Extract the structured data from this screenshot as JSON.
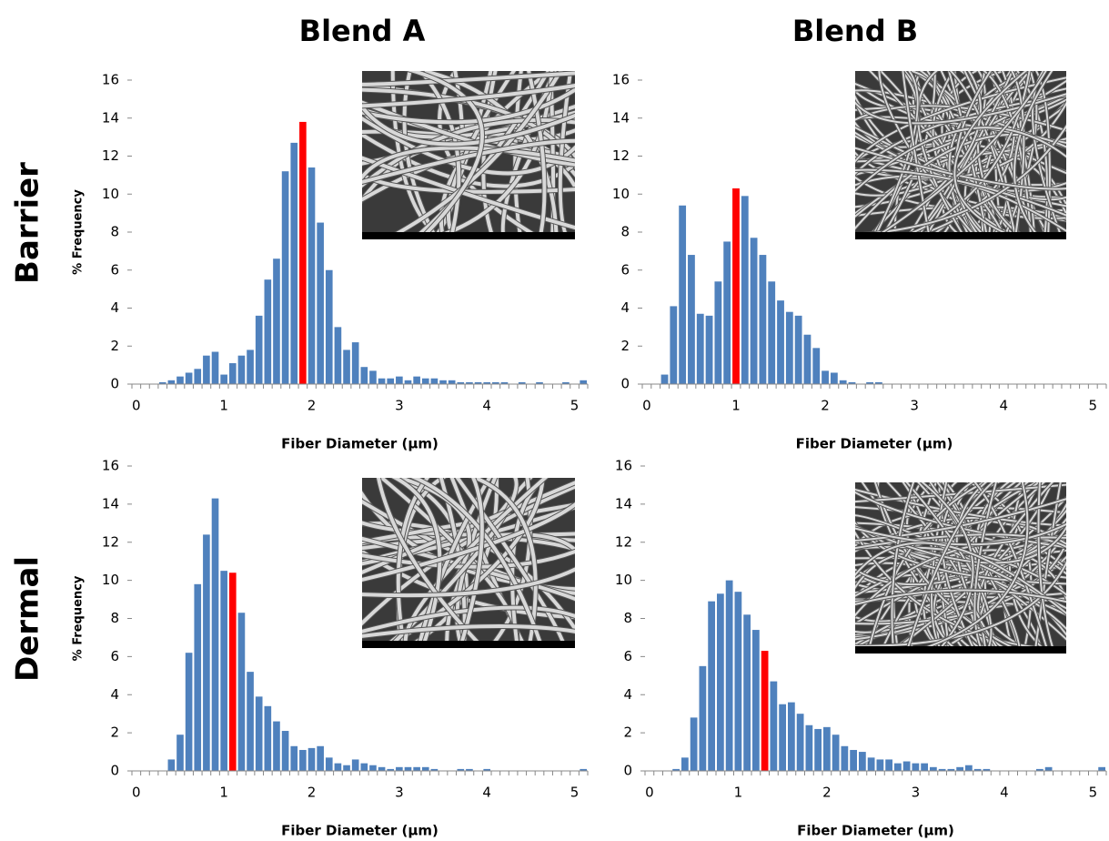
{
  "figure": {
    "columns": [
      "Blend A",
      "Blend B"
    ],
    "rows": [
      "Barrier",
      "Dermal"
    ]
  },
  "chart_data": [
    {
      "type": "histogram",
      "xlabel": "Fiber Diameter (µm)",
      "ylabel": "% Frequency",
      "color": "#4f81bd",
      "highlight_index": 19,
      "highlight_color": "#ff0000",
      "bins": [
        -0.05,
        0.05,
        0.15,
        0.25,
        0.35,
        0.45,
        0.55,
        0.65,
        0.75,
        0.85,
        0.95,
        1.05,
        1.15,
        1.25,
        1.35,
        1.45,
        1.55,
        1.65,
        1.75,
        1.85,
        1.95,
        2.05,
        2.15,
        2.25,
        2.35,
        2.45,
        2.55,
        2.65,
        2.75,
        2.85,
        2.95,
        3.05,
        3.15,
        3.25,
        3.35,
        3.45,
        3.55,
        3.65,
        3.75,
        3.85,
        3.95,
        4.05,
        4.15,
        4.25,
        4.35,
        4.45,
        4.55,
        4.65,
        4.75,
        4.85,
        4.95,
        5.05,
        5.15
      ],
      "values": [
        0,
        0,
        0,
        0.1,
        0.2,
        0.4,
        0.6,
        0.8,
        1.5,
        1.7,
        0.5,
        1.1,
        1.5,
        1.8,
        3.6,
        5.5,
        6.6,
        11.2,
        12.7,
        13.8,
        11.4,
        8.5,
        6.0,
        3.0,
        1.8,
        2.2,
        0.9,
        0.7,
        0.3,
        0.3,
        0.4,
        0.2,
        0.4,
        0.3,
        0.3,
        0.2,
        0.2,
        0.1,
        0.1,
        0.1,
        0.1,
        0.1,
        0.1,
        0,
        0.1,
        0,
        0.1,
        0,
        0,
        0.1,
        0,
        0.2
      ],
      "xlim": [
        -0.05,
        5.15
      ],
      "xticks": [
        0,
        1,
        2,
        3,
        4,
        5
      ],
      "ylim": [
        0,
        16
      ],
      "yticks": [
        0,
        2,
        4,
        6,
        8,
        10,
        12,
        14,
        16
      ]
    },
    {
      "type": "histogram",
      "xlabel": "Fiber Diameter (µm)",
      "color": "#4f81bd",
      "highlight_index": 10,
      "highlight_color": "#ff0000",
      "bins": [
        -0.05,
        0.05,
        0.15,
        0.25,
        0.35,
        0.45,
        0.55,
        0.65,
        0.75,
        0.85,
        0.95,
        1.05,
        1.15,
        1.25,
        1.35,
        1.45,
        1.55,
        1.65,
        1.75,
        1.85,
        1.95,
        2.05,
        2.15,
        2.25,
        2.35,
        2.45,
        2.55,
        2.65,
        2.75,
        2.85,
        2.95,
        3.05,
        3.15,
        3.25,
        3.35,
        3.45,
        3.55,
        3.65,
        3.75,
        3.85,
        3.95,
        4.05,
        4.15,
        4.25,
        4.35,
        4.45,
        4.55,
        4.65,
        4.75,
        4.85,
        4.95,
        5.05,
        5.15
      ],
      "values": [
        0,
        0,
        0.5,
        4.1,
        9.4,
        6.8,
        3.7,
        3.6,
        5.4,
        7.5,
        10.3,
        9.9,
        7.7,
        6.8,
        5.4,
        4.4,
        3.8,
        3.6,
        2.6,
        1.9,
        0.7,
        0.6,
        0.2,
        0.1,
        0,
        0.1,
        0.1,
        0,
        0,
        0,
        0,
        0,
        0,
        0,
        0,
        0,
        0,
        0,
        0,
        0,
        0,
        0,
        0,
        0,
        0,
        0,
        0,
        0,
        0,
        0,
        0,
        0
      ],
      "xlim": [
        -0.05,
        5.15
      ],
      "xticks": [
        0,
        1,
        2,
        3,
        4,
        5
      ],
      "ylim": [
        0,
        16
      ],
      "yticks": [
        0,
        2,
        4,
        6,
        8,
        10,
        12,
        14,
        16
      ]
    },
    {
      "type": "histogram",
      "xlabel": "Fiber Diameter (µm)",
      "ylabel": "% Frequency",
      "color": "#4f81bd",
      "highlight_index": 11,
      "highlight_color": "#ff0000",
      "bins": [
        -0.05,
        0.05,
        0.15,
        0.25,
        0.35,
        0.45,
        0.55,
        0.65,
        0.75,
        0.85,
        0.95,
        1.05,
        1.15,
        1.25,
        1.35,
        1.45,
        1.55,
        1.65,
        1.75,
        1.85,
        1.95,
        2.05,
        2.15,
        2.25,
        2.35,
        2.45,
        2.55,
        2.65,
        2.75,
        2.85,
        2.95,
        3.05,
        3.15,
        3.25,
        3.35,
        3.45,
        3.55,
        3.65,
        3.75,
        3.85,
        3.95,
        4.05,
        4.15,
        4.25,
        4.35,
        4.45,
        4.55,
        4.65,
        4.75,
        4.85,
        4.95,
        5.05,
        5.15
      ],
      "values": [
        0,
        0,
        0,
        0,
        0.6,
        1.9,
        6.2,
        9.8,
        12.4,
        14.3,
        10.5,
        10.4,
        8.3,
        5.2,
        3.9,
        3.4,
        2.6,
        2.1,
        1.3,
        1.1,
        1.2,
        1.3,
        0.7,
        0.4,
        0.3,
        0.6,
        0.4,
        0.3,
        0.2,
        0.1,
        0.2,
        0.2,
        0.2,
        0.2,
        0.1,
        0,
        0,
        0.1,
        0.1,
        0,
        0.1,
        0,
        0,
        0,
        0,
        0,
        0,
        0,
        0,
        0,
        0,
        0.1
      ],
      "xlim": [
        -0.05,
        5.15
      ],
      "xticks": [
        0,
        1,
        2,
        3,
        4,
        5
      ],
      "ylim": [
        0,
        16
      ],
      "yticks": [
        0,
        2,
        4,
        6,
        8,
        10,
        12,
        14,
        16
      ]
    },
    {
      "type": "histogram",
      "xlabel": "Fiber Diameter (µm)",
      "color": "#4f81bd",
      "highlight_index": 13,
      "highlight_color": "#ff0000",
      "bins": [
        -0.05,
        0.05,
        0.15,
        0.25,
        0.35,
        0.45,
        0.55,
        0.65,
        0.75,
        0.85,
        0.95,
        1.05,
        1.15,
        1.25,
        1.35,
        1.45,
        1.55,
        1.65,
        1.75,
        1.85,
        1.95,
        2.05,
        2.15,
        2.25,
        2.35,
        2.45,
        2.55,
        2.65,
        2.75,
        2.85,
        2.95,
        3.05,
        3.15,
        3.25,
        3.35,
        3.45,
        3.55,
        3.65,
        3.75,
        3.85,
        3.95,
        4.05,
        4.15,
        4.25,
        4.35,
        4.45,
        4.55,
        4.65,
        4.75,
        4.85,
        4.95,
        5.05,
        5.15
      ],
      "values": [
        0,
        0,
        0,
        0.1,
        0.7,
        2.8,
        5.5,
        8.9,
        9.3,
        10.0,
        9.4,
        8.2,
        7.4,
        6.3,
        4.7,
        3.5,
        3.6,
        3.0,
        2.4,
        2.2,
        2.3,
        1.9,
        1.3,
        1.1,
        1.0,
        0.7,
        0.6,
        0.6,
        0.4,
        0.5,
        0.4,
        0.4,
        0.2,
        0.1,
        0.1,
        0.2,
        0.3,
        0.1,
        0.1,
        0,
        0,
        0,
        0,
        0,
        0.1,
        0.2,
        0,
        0,
        0,
        0,
        0,
        0.2
      ],
      "xlim": [
        -0.05,
        5.15
      ],
      "xticks": [
        0,
        1,
        2,
        3,
        4,
        5
      ],
      "ylim": [
        0,
        16
      ],
      "yticks": [
        0,
        2,
        4,
        6,
        8,
        10,
        12,
        14,
        16
      ]
    }
  ]
}
